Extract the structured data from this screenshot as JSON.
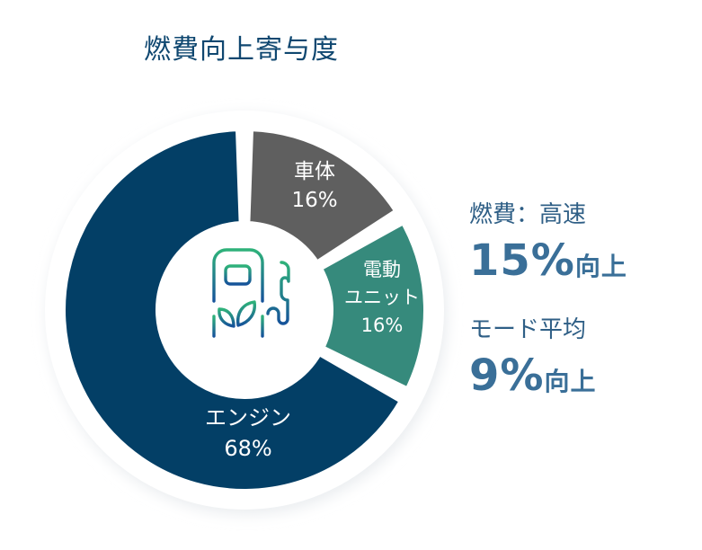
{
  "title": "燃費向上寄与度",
  "chart_data": {
    "type": "pie",
    "style": "donut",
    "title": "燃費向上寄与度",
    "categories": [
      "車体",
      "電動ユニット",
      "エンジン"
    ],
    "values": [
      16,
      16,
      68
    ],
    "colors": [
      "#5f5f5f",
      "#368a7c",
      "#033f66"
    ],
    "center_icon": "eco-fuel-pump-icon",
    "legend": "none"
  },
  "segments": [
    {
      "name": "車体",
      "label_lines": [
        "車体",
        "16%"
      ],
      "color": "#5f5f5f",
      "start": 2,
      "end": 57
    },
    {
      "name": "電動ユニット",
      "label_lines": [
        "電動",
        "ユニット",
        "16%"
      ],
      "color": "#368a7c",
      "start": 61,
      "end": 116
    },
    {
      "name": "エンジン",
      "label_lines": [
        "エンジン",
        "68%"
      ],
      "color": "#033f66",
      "start": 120,
      "end": 358
    }
  ],
  "side": {
    "highway_label": "燃費：高速",
    "highway_value": "15%",
    "highway_suffix": "向上",
    "mode_label": "モード平均",
    "mode_value": "9%",
    "mode_suffix": "向上"
  }
}
